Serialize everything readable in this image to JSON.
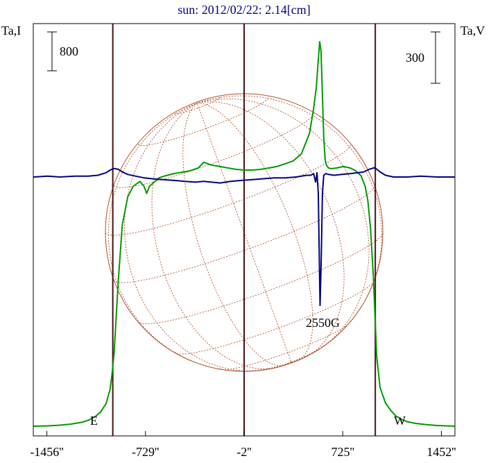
{
  "chart_data": {
    "type": "line",
    "title": "sun: 2012/02/22: 2.14[cm]",
    "left_axis_label": "Ta,I",
    "right_axis_label": "Ta,V",
    "left_scale_bar": "800",
    "right_scale_bar": "300",
    "xlim": [
      -1556,
      1552
    ],
    "ticks": [
      {
        "x": -1456,
        "label": "-1456''"
      },
      {
        "x": -729,
        "label": "-729''"
      },
      {
        "x": -2,
        "label": "-2''"
      },
      {
        "x": 725,
        "label": "725''"
      },
      {
        "x": 1452,
        "label": "1452''"
      }
    ],
    "limb_markers": [
      {
        "x": -970,
        "label": "E"
      },
      {
        "x": 965,
        "label": "W"
      }
    ],
    "center_marker_x": -2,
    "annotation": "2550G",
    "series": [
      {
        "color": "#009900",
        "x": [
          -1556,
          -1450,
          -1360,
          -1280,
          -1200,
          -1150,
          -1100,
          -1060,
          -1020,
          -990,
          -975,
          -960,
          -930,
          -900,
          -860,
          -820,
          -770,
          -740,
          -720,
          -700,
          -670,
          -630,
          -580,
          -520,
          -460,
          -400,
          -340,
          -300,
          -240,
          -180,
          -120,
          -60,
          0,
          60,
          120,
          180,
          240,
          300,
          360,
          420,
          480,
          510,
          530,
          545,
          555,
          565,
          575,
          585,
          595,
          605,
          620,
          640,
          680,
          730,
          780,
          820,
          860,
          890,
          910,
          930,
          950,
          962,
          975,
          1000,
          1040,
          1080,
          1120,
          1160,
          1200,
          1260,
          1330,
          1420,
          1552
        ],
        "y": [
          0.0,
          0.5,
          1.5,
          3.0,
          5.5,
          8.5,
          13.5,
          20.0,
          32.0,
          52.0,
          75.0,
          105.0,
          205.0,
          285.0,
          325.0,
          340.0,
          347.0,
          340.0,
          330.0,
          340.0,
          345.0,
          352.0,
          355.0,
          358.0,
          360.0,
          362.0,
          366.0,
          374.0,
          370.0,
          368.0,
          366.0,
          364.0,
          363.0,
          363.0,
          364.0,
          366.0,
          368.0,
          372.0,
          376.0,
          386.0,
          415.0,
          450.0,
          480.0,
          520.0,
          545.0,
          532.0,
          470.0,
          410.0,
          378.0,
          370.0,
          366.0,
          365.0,
          366.0,
          368.0,
          366.0,
          362.0,
          355.0,
          340.0,
          320.0,
          280.0,
          215.0,
          160.0,
          100.0,
          55.0,
          33.0,
          22.0,
          14.0,
          9.5,
          6.5,
          4.0,
          2.5,
          1.0,
          0.0
        ]
      },
      {
        "color": "#000080",
        "x": [
          -1556,
          -1450,
          -1360,
          -1250,
          -1150,
          -1080,
          -1020,
          -990,
          -960,
          -930,
          -900,
          -860,
          -800,
          -740,
          -680,
          -600,
          -520,
          -440,
          -360,
          -300,
          -240,
          -180,
          -100,
          -20,
          60,
          140,
          220,
          300,
          380,
          420,
          460,
          490,
          510,
          525,
          535,
          545,
          552,
          558,
          566,
          575,
          585,
          600,
          620,
          660,
          720,
          780,
          840,
          880,
          920,
          960,
          1000,
          1040,
          1100,
          1200,
          1300,
          1420,
          1552
        ],
        "y": [
          0,
          1,
          0,
          1,
          1,
          2,
          5,
          8,
          10,
          9,
          6,
          3,
          1,
          -1,
          -2,
          -3,
          -4,
          -5,
          -6,
          -5,
          -6,
          -7,
          -5,
          -4,
          -3,
          -2,
          -1,
          -1,
          0,
          1,
          2,
          2,
          4,
          -6,
          5,
          -20,
          -95,
          -150,
          -100,
          -20,
          2,
          4,
          3,
          2,
          3,
          4,
          5,
          6,
          9,
          11,
          6,
          2,
          0,
          0,
          1,
          0,
          0
        ]
      }
    ]
  }
}
